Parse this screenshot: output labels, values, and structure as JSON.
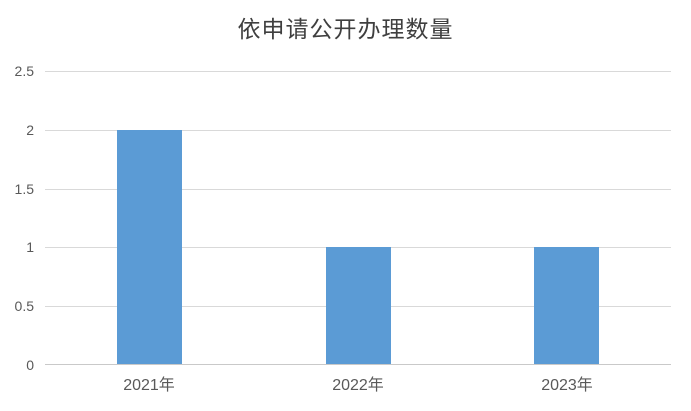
{
  "chart_data": {
    "type": "bar",
    "title": "依申请公开办理数量",
    "categories": [
      "2021年",
      "2022年",
      "2023年"
    ],
    "values": [
      2,
      1,
      1
    ],
    "xlabel": "",
    "ylabel": "",
    "ylim": [
      0,
      2.5
    ],
    "ytick_labels": [
      "0",
      "0.5",
      "1",
      "1.5",
      "2",
      "2.5"
    ],
    "ytick_values": [
      0,
      0.5,
      1,
      1.5,
      2,
      2.5
    ],
    "grid": "horizontal",
    "legend": "none",
    "colors": {
      "bar": "#5b9bd5",
      "gridline": "#d9d9d9",
      "axis_line": "#c9c9c9",
      "tick_text": "#595959",
      "title_text": "#3f3f3f",
      "background": "#ffffff"
    }
  }
}
